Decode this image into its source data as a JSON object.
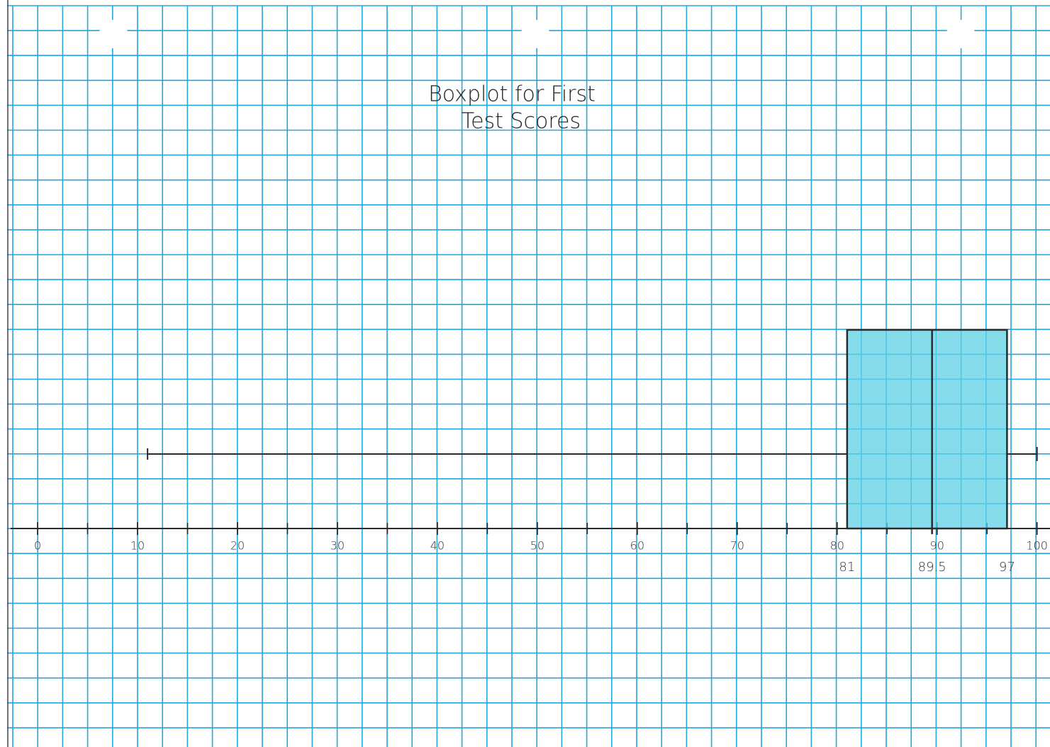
{
  "chart_data": {
    "type": "box",
    "title": [
      "Boxplot for First",
      "Test Scores"
    ],
    "min": 11,
    "q1": 81,
    "median": 89.5,
    "q3": 97,
    "max": 100,
    "color": "#5fd0e6",
    "xlim": [
      -2.7,
      101.3
    ],
    "xticks": [
      0,
      10,
      20,
      30,
      40,
      50,
      60,
      70,
      80,
      90,
      100
    ],
    "xminorticks": [
      5,
      15,
      25,
      35,
      45,
      55,
      65,
      75,
      85,
      95
    ]
  }
}
